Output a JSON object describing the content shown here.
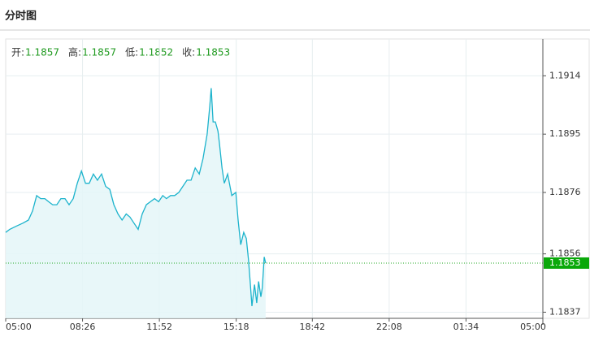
{
  "header": {
    "title": "分时图"
  },
  "chart_data": {
    "type": "line",
    "info": [
      {
        "label": "开:",
        "value": 1.1857
      },
      {
        "label": "高:",
        "value": 1.1857
      },
      {
        "label": "低:",
        "value": 1.1852
      },
      {
        "label": "收:",
        "value": 1.1853
      }
    ],
    "last_price": 1.1853,
    "x": [
      0,
      11,
      28,
      46,
      61,
      72,
      83,
      94,
      105,
      115,
      126,
      137,
      148,
      159,
      170,
      181,
      192,
      203,
      214,
      224,
      235,
      246,
      257,
      268,
      279,
      290,
      301,
      312,
      323,
      333,
      344,
      355,
      366,
      377,
      388,
      399,
      410,
      421,
      431,
      442,
      453,
      464,
      475,
      486,
      497,
      508,
      519,
      529,
      540,
      547,
      551,
      556,
      562,
      569,
      573,
      580,
      586,
      595,
      606,
      617,
      623,
      630,
      638,
      645,
      651,
      656,
      660,
      667,
      673,
      678,
      684,
      688,
      693,
      697
    ],
    "series": [
      {
        "color": "#1cb3cc",
        "values": [
          1.1863,
          1.1864,
          1.1865,
          1.1866,
          1.1867,
          1.187,
          1.1875,
          1.1874,
          1.1874,
          1.1873,
          1.1872,
          1.1872,
          1.1874,
          1.1874,
          1.1872,
          1.1874,
          1.1879,
          1.1883,
          1.1879,
          1.1879,
          1.1882,
          1.188,
          1.1882,
          1.1878,
          1.1877,
          1.1872,
          1.1869,
          1.1867,
          1.1869,
          1.1868,
          1.1866,
          1.1864,
          1.1869,
          1.1872,
          1.1873,
          1.1874,
          1.1873,
          1.1875,
          1.1874,
          1.1875,
          1.1875,
          1.1876,
          1.1878,
          1.188,
          1.188,
          1.1884,
          1.1882,
          1.1887,
          1.1895,
          1.1904,
          1.191,
          1.1899,
          1.1899,
          1.1896,
          1.1892,
          1.1884,
          1.1879,
          1.1882,
          1.1875,
          1.1876,
          1.1867,
          1.1859,
          1.1863,
          1.1861,
          1.1854,
          1.1846,
          1.1839,
          1.1846,
          1.184,
          1.1847,
          1.1842,
          1.1845,
          1.1855,
          1.1853
        ]
      }
    ],
    "xlim": [
      0,
      1440
    ],
    "xticks": [
      {
        "value": 0,
        "label": "05:00"
      },
      {
        "value": 206,
        "label": "08:26"
      },
      {
        "value": 412,
        "label": "11:52"
      },
      {
        "value": 618,
        "label": "15:18"
      },
      {
        "value": 822,
        "label": "18:42"
      },
      {
        "value": 1028,
        "label": "22:08"
      },
      {
        "value": 1234,
        "label": "01:34"
      },
      {
        "value": 1440,
        "label": "05:00"
      }
    ],
    "ylim": [
      1.1835,
      1.1926
    ],
    "yticks": [
      1.1914,
      1.1895,
      1.1876,
      1.1856,
      1.1837
    ],
    "grid": true
  }
}
